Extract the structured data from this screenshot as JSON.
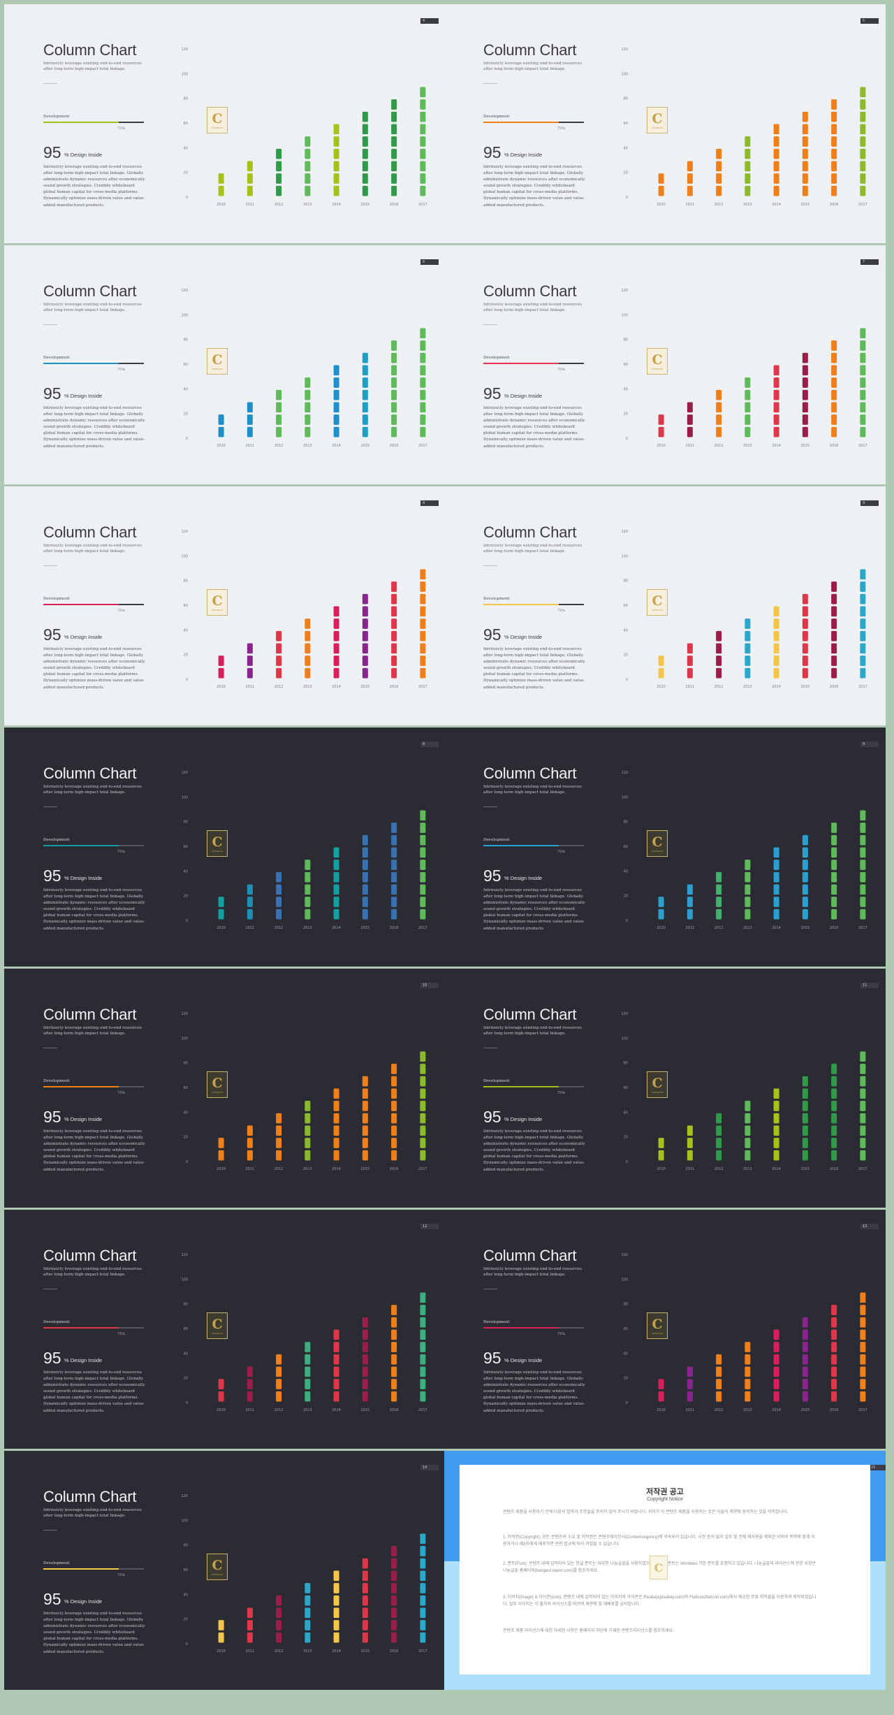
{
  "slide_text": {
    "title": "Column Chart",
    "subtitle": "Intrinsicly leverage existing end-to-end resources after long-term high-impact total linkage.",
    "progress_label": "Development",
    "progress_percent_label": "75%",
    "progress_value": 0.75,
    "big_number": "95",
    "big_number_suffix": "%  Design Inside",
    "body": "Intrinsicly leverage existing end-to-end resources after long-term high-impact total linkage. Globally administrate dynamic resources after economically sound growth strategies. Credibly whiteboard global human capital for cross-media platforms. Dynamically optimize mass-driven value and value-added manufactured products.",
    "logo_letter": "C",
    "logo_caption": "CONTENTS"
  },
  "chart_data": {
    "type": "bar",
    "categories": [
      "2010",
      "2011",
      "2012",
      "2013",
      "2014",
      "2015",
      "2016",
      "2017"
    ],
    "values": [
      20,
      30,
      40,
      50,
      60,
      70,
      80,
      90
    ],
    "y_ticks": [
      "0",
      "20",
      "40",
      "60",
      "80",
      "100",
      "120"
    ],
    "ylim": [
      0,
      120
    ],
    "segments_per_10": 1,
    "grid": false
  },
  "slides": [
    {
      "theme": "light",
      "page": "4",
      "accent": "#a5c21a",
      "colors": [
        "#a5c21a",
        "#a5c21a",
        "#2f9a48",
        "#5fba5a",
        "#a5c21a",
        "#2f9a48",
        "#2f9a48",
        "#5fba5a"
      ]
    },
    {
      "theme": "light",
      "page": "5",
      "accent": "#f07f1a",
      "colors": [
        "#f07f1a",
        "#f07f1a",
        "#f07f1a",
        "#8bbb2a",
        "#f07f1a",
        "#f07f1a",
        "#f07f1a",
        "#8bbb2a"
      ]
    },
    {
      "theme": "light",
      "page": "6",
      "accent": "#1e8fc8",
      "colors": [
        "#1e8fc8",
        "#1e8fc8",
        "#5fba5a",
        "#5fba5a",
        "#1e8fc8",
        "#1e9fc8",
        "#5fba5a",
        "#5fba5a"
      ]
    },
    {
      "theme": "light",
      "page": "7",
      "accent": "#e0364a",
      "colors": [
        "#e0364a",
        "#9b1d48",
        "#f07f1a",
        "#5fba5a",
        "#e0364a",
        "#9b1d48",
        "#f07f1a",
        "#5fba5a"
      ]
    },
    {
      "theme": "light",
      "page": "8",
      "accent": "#d81f5a",
      "colors": [
        "#d81f5a",
        "#8b2390",
        "#e0364a",
        "#f07f1a",
        "#d81f5a",
        "#8b2390",
        "#e0364a",
        "#f07f1a"
      ]
    },
    {
      "theme": "light",
      "page": "9",
      "accent": "#f5c54a",
      "colors": [
        "#f5c54a",
        "#e0364a",
        "#9b1d48",
        "#2aa7c9",
        "#f5c54a",
        "#e0364a",
        "#9b1d48",
        "#2aa7c9"
      ]
    },
    {
      "theme": "dark",
      "page": "8",
      "accent": "#13a0a0",
      "colors": [
        "#13a0a0",
        "#1f8fb8",
        "#3872b5",
        "#5fba5a",
        "#13a0a0",
        "#3872b5",
        "#3872b5",
        "#5fba5a"
      ]
    },
    {
      "theme": "dark",
      "page": "9",
      "accent": "#2a9fd0",
      "colors": [
        "#2a9fd0",
        "#2a9fd0",
        "#44b070",
        "#5fba5a",
        "#2a9fd0",
        "#2a9fd0",
        "#5fba5a",
        "#5fba5a"
      ]
    },
    {
      "theme": "dark",
      "page": "10",
      "accent": "#f07f1a",
      "colors": [
        "#f07f1a",
        "#f07f1a",
        "#f07f1a",
        "#8bbb2a",
        "#f07f1a",
        "#f07f1a",
        "#f07f1a",
        "#8bbb2a"
      ]
    },
    {
      "theme": "dark",
      "page": "11",
      "accent": "#a5c21a",
      "colors": [
        "#a5c21a",
        "#a5c21a",
        "#2f9a48",
        "#5fba5a",
        "#a5c21a",
        "#2f9a48",
        "#2f9a48",
        "#5fba5a"
      ]
    },
    {
      "theme": "dark",
      "page": "12",
      "accent": "#e0364a",
      "colors": [
        "#e0364a",
        "#9b1d48",
        "#f07f1a",
        "#3cae7f",
        "#e0364a",
        "#9b1d48",
        "#f07f1a",
        "#3cae7f"
      ]
    },
    {
      "theme": "dark",
      "page": "13",
      "accent": "#d81f5a",
      "colors": [
        "#d81f5a",
        "#8b2390",
        "#f07f1a",
        "#f07f1a",
        "#d81f5a",
        "#8b2390",
        "#e0364a",
        "#f07f1a"
      ]
    },
    {
      "theme": "dark",
      "page": "14",
      "accent": "#f5c54a",
      "colors": [
        "#f5c54a",
        "#e0364a",
        "#9b1d48",
        "#2aa7c9",
        "#f5c54a",
        "#e0364a",
        "#9b1d48",
        "#2aa7c9"
      ]
    }
  ],
  "notice": {
    "page": "15",
    "title": "저작권 공고",
    "subtitle": "Copyright Notice",
    "paragraphs": [
      "콘텐츠 제품을 사용하기 전에 다음의 협약과 조항들을 주의하 읽어 주시기 바랍니다. 귀하가 이 콘텐츠 제품을 사용하는 것은 이들의 계약에 동의하는 것을 의미합니다.",
      "1. 저작권(Copyright): 모든 콘텐츠의 소유 및 저작권은 콘텐츠에이전시(ContentsAgency)에 귀속되어 있습니다. 사전 동의 없이 일부 및 전체 재사용을 제외한 이외의 목적에 맞게 이용하거나 제3자에게 배포하면 관련 법규에 따라 처벌될 수 있습니다.",
      "2. 폰트(Font): 콘텐츠 내에 입력되어 있는 한글 폰트는 대부분 나눔글꼴을 사용하였으며 윈도우 폰트는 Windows 기본 폰트를 포함하고 있습니다. 나눔글꼴의 라이선스에 관한 사항은 나눔글꼴 홈페이지(hangeul.naver.com)를 참조하세요.",
      "3. 이미지(Image) & 아이콘(Icon): 콘텐츠 내에 입력되어 있는 이미지와 아이콘은 Pixabay(pixabay.com)와 Flaticon(flaticon.com)에서 제공한 무료 저작물을 이용하여 제작되었습니다. 일부 이미지는 각 출처의 라이선스를 따르며 재판매 및 재배포를 금지합니다.",
      "콘텐츠 제품 라이선스에 대한 자세한 사항은 홈페이지 하단에 기재된 콘텐츠라이선스를 참조하세요."
    ]
  }
}
